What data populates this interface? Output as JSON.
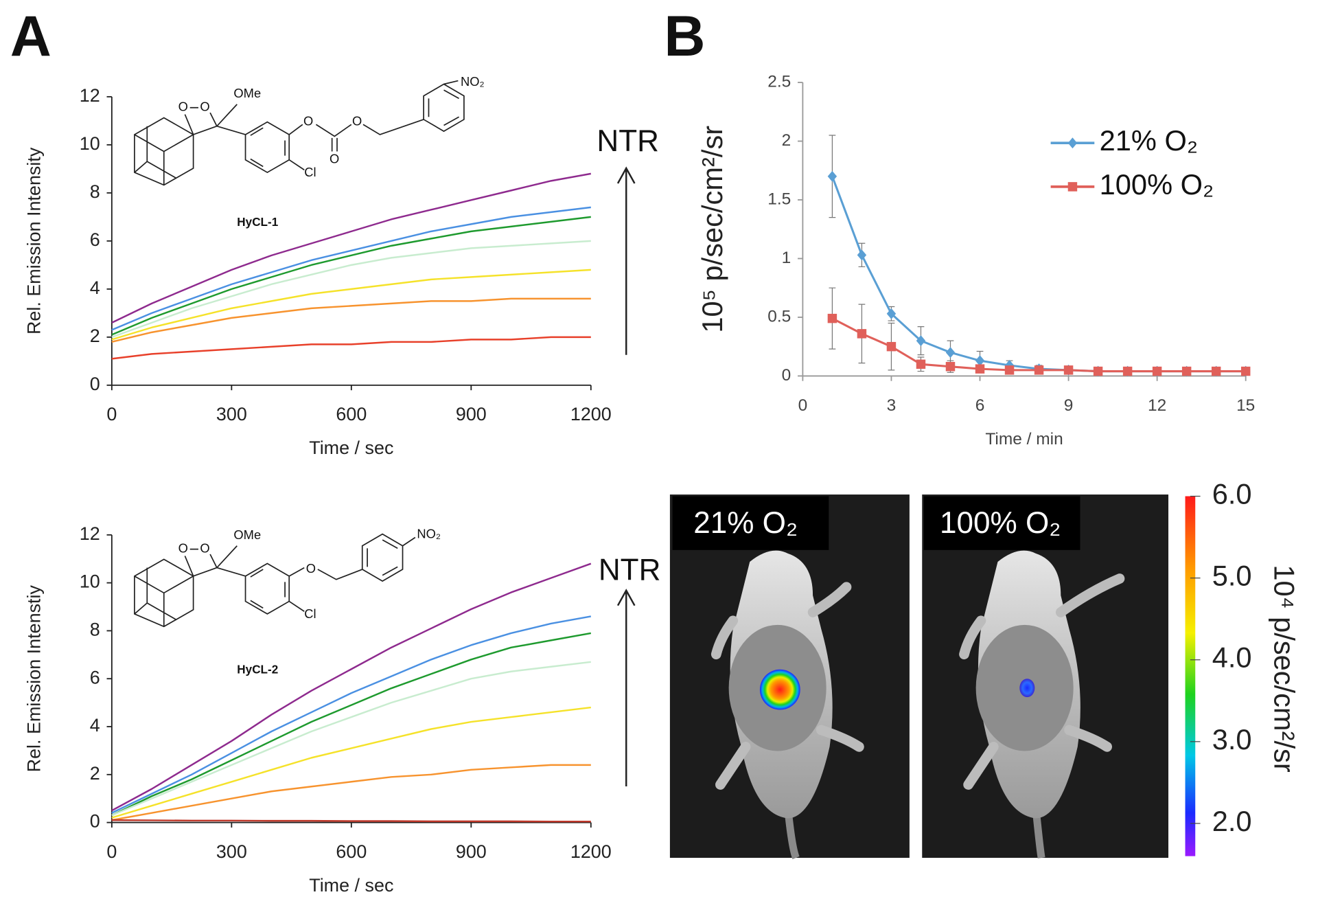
{
  "panel_labels": [
    "A",
    "B"
  ],
  "chart_data": [
    {
      "type": "line",
      "xlabel": "Time / sec",
      "ylabel": "Rel. Emission Intensity",
      "x": [
        0,
        100,
        200,
        300,
        400,
        500,
        600,
        700,
        800,
        900,
        1000,
        1100,
        1200
      ],
      "xlim": [
        0,
        1200
      ],
      "xticks": [
        0,
        300,
        600,
        900,
        1200
      ],
      "ylim": [
        0,
        12
      ],
      "yticks": [
        0,
        2,
        4,
        6,
        8,
        10,
        12
      ],
      "grid": false,
      "annotations": {
        "arrow": "NTR",
        "compound": "HyCL-1",
        "atoms": [
          "O",
          "O",
          "OMe",
          "O",
          "O",
          "O",
          "NO₂",
          "Cl"
        ]
      },
      "series": [
        {
          "color": "#8e2a8e",
          "values": [
            2.6,
            3.4,
            4.1,
            4.8,
            5.4,
            5.9,
            6.4,
            6.9,
            7.3,
            7.7,
            8.1,
            8.5,
            8.8
          ]
        },
        {
          "color": "#4a90e2",
          "values": [
            2.3,
            3.0,
            3.6,
            4.2,
            4.7,
            5.2,
            5.6,
            6.0,
            6.4,
            6.7,
            7.0,
            7.2,
            7.4
          ]
        },
        {
          "color": "#1e9a2e",
          "values": [
            2.1,
            2.8,
            3.4,
            4.0,
            4.5,
            5.0,
            5.4,
            5.8,
            6.1,
            6.4,
            6.6,
            6.8,
            7.0
          ]
        },
        {
          "color": "#c8eccf",
          "values": [
            2.0,
            2.6,
            3.2,
            3.7,
            4.2,
            4.6,
            5.0,
            5.3,
            5.5,
            5.7,
            5.8,
            5.9,
            6.0
          ]
        },
        {
          "color": "#f5e22a",
          "values": [
            1.9,
            2.4,
            2.8,
            3.2,
            3.5,
            3.8,
            4.0,
            4.2,
            4.4,
            4.5,
            4.6,
            4.7,
            4.8
          ]
        },
        {
          "color": "#f7932e",
          "values": [
            1.8,
            2.2,
            2.5,
            2.8,
            3.0,
            3.2,
            3.3,
            3.4,
            3.5,
            3.5,
            3.6,
            3.6,
            3.6
          ]
        },
        {
          "color": "#e8402a",
          "values": [
            1.1,
            1.3,
            1.4,
            1.5,
            1.6,
            1.7,
            1.7,
            1.8,
            1.8,
            1.9,
            1.9,
            2.0,
            2.0
          ]
        }
      ]
    },
    {
      "type": "line",
      "xlabel": "Time / sec",
      "ylabel": "Rel. Emission Intenstiy",
      "x": [
        0,
        100,
        200,
        300,
        400,
        500,
        600,
        700,
        800,
        900,
        1000,
        1100,
        1200
      ],
      "xlim": [
        0,
        1200
      ],
      "xticks": [
        0,
        300,
        600,
        900,
        1200
      ],
      "ylim": [
        0,
        12
      ],
      "yticks": [
        0,
        2,
        4,
        6,
        8,
        10,
        12
      ],
      "grid": false,
      "annotations": {
        "arrow": "NTR",
        "compound": "HyCL-2",
        "atoms": [
          "O",
          "O",
          "OMe",
          "O",
          "NO₂",
          "Cl"
        ]
      },
      "series": [
        {
          "color": "#8e2a8e",
          "values": [
            0.5,
            1.4,
            2.4,
            3.4,
            4.5,
            5.5,
            6.4,
            7.3,
            8.1,
            8.9,
            9.6,
            10.2,
            10.8
          ]
        },
        {
          "color": "#4a90e2",
          "values": [
            0.4,
            1.2,
            2.0,
            2.9,
            3.8,
            4.6,
            5.4,
            6.1,
            6.8,
            7.4,
            7.9,
            8.3,
            8.6
          ]
        },
        {
          "color": "#1e9a2e",
          "values": [
            0.3,
            1.1,
            1.8,
            2.6,
            3.4,
            4.2,
            4.9,
            5.6,
            6.2,
            6.8,
            7.3,
            7.6,
            7.9
          ]
        },
        {
          "color": "#c8eccf",
          "values": [
            0.3,
            1.0,
            1.7,
            2.4,
            3.1,
            3.8,
            4.4,
            5.0,
            5.5,
            6.0,
            6.3,
            6.5,
            6.7
          ]
        },
        {
          "color": "#f5e22a",
          "values": [
            0.2,
            0.7,
            1.2,
            1.7,
            2.2,
            2.7,
            3.1,
            3.5,
            3.9,
            4.2,
            4.4,
            4.6,
            4.8
          ]
        },
        {
          "color": "#f7932e",
          "values": [
            0.1,
            0.4,
            0.7,
            1.0,
            1.3,
            1.5,
            1.7,
            1.9,
            2.0,
            2.2,
            2.3,
            2.4,
            2.4
          ]
        },
        {
          "color": "#c0392b",
          "values": [
            0.1,
            0.09,
            0.08,
            0.08,
            0.07,
            0.07,
            0.06,
            0.06,
            0.05,
            0.05,
            0.05,
            0.04,
            0.04
          ]
        }
      ]
    },
    {
      "type": "line",
      "xlabel": "Time / min",
      "ylabel": "10⁵ p/sec/cm²/sr",
      "x": [
        1,
        2,
        3,
        4,
        5,
        6,
        7,
        8,
        9,
        10,
        11,
        12,
        13,
        14,
        15
      ],
      "xlim": [
        0,
        15
      ],
      "xticks": [
        0,
        3,
        6,
        9,
        12,
        15
      ],
      "ylim": [
        0,
        2.5
      ],
      "yticks": [
        0,
        0.5,
        1,
        1.5,
        2,
        2.5
      ],
      "grid": false,
      "legend": "upper right",
      "series": [
        {
          "name": "21% O₂",
          "color": "#5a9fd4",
          "marker": "diamond",
          "values": [
            1.7,
            1.03,
            0.53,
            0.3,
            0.2,
            0.13,
            0.09,
            0.06,
            0.05,
            0.04,
            0.04,
            0.04,
            0.04,
            0.04,
            0.04
          ],
          "errors": [
            0.35,
            0.1,
            0.06,
            0.12,
            0.1,
            0.08,
            0.04,
            0.03,
            0.02,
            0.02,
            0.02,
            0.01,
            0.01,
            0.01,
            0.01
          ]
        },
        {
          "name": "100% O₂",
          "color": "#e0605a",
          "marker": "square",
          "values": [
            0.49,
            0.36,
            0.25,
            0.1,
            0.08,
            0.06,
            0.05,
            0.05,
            0.05,
            0.04,
            0.04,
            0.04,
            0.04,
            0.04,
            0.04
          ],
          "errors": [
            0.26,
            0.25,
            0.2,
            0.06,
            0.05,
            0.03,
            0.02,
            0.02,
            0.01,
            0.01,
            0.01,
            0.01,
            0.01,
            0.01,
            0.01
          ]
        }
      ]
    }
  ],
  "images": {
    "panels": [
      {
        "label": "21% O₂"
      },
      {
        "label": "100% O₂"
      }
    ],
    "colorbar": {
      "label": "10⁴ p/sec/cm²/sr",
      "lim": [
        1.6,
        6
      ],
      "ticks": [
        {
          "value": 6,
          "label": "6.0"
        },
        {
          "value": 5,
          "label": "5.0"
        },
        {
          "value": 4,
          "label": "4.0"
        },
        {
          "value": 3,
          "label": "3.0"
        },
        {
          "value": 2,
          "label": "2.0"
        }
      ]
    }
  }
}
